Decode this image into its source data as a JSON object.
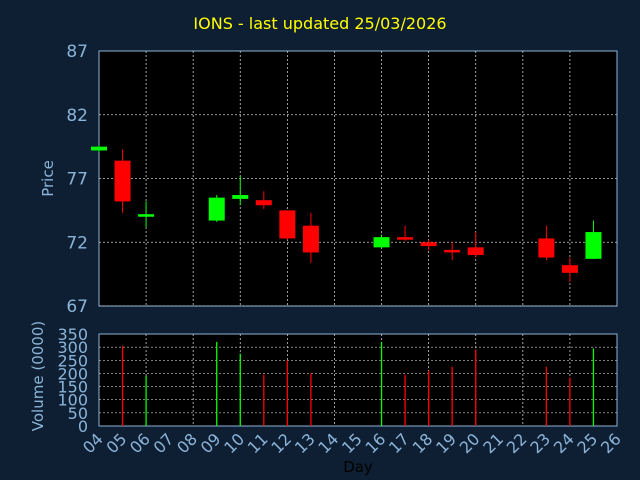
{
  "chart_data": [
    {
      "type": "candlestick",
      "title": "IONS - last updated 25/03/2026",
      "ylabel": "Price",
      "ylim": [
        67,
        87
      ],
      "yticks": [
        67,
        72,
        77,
        82,
        87
      ],
      "grid": true,
      "colors": {
        "up": "#00ff00",
        "down": "#ff0000",
        "background": "#0f1f33",
        "panel": "#000000",
        "axis": "#8ab4d8",
        "title": "#ffff00"
      },
      "days": [
        "04",
        "05",
        "06",
        "07",
        "08",
        "09",
        "10",
        "11",
        "12",
        "13",
        "14",
        "15",
        "16",
        "17",
        "18",
        "19",
        "20",
        "21",
        "22",
        "23",
        "24",
        "25",
        "26"
      ],
      "candles": [
        {
          "day": "04",
          "open": 79.2,
          "close": 79.5,
          "high": 79.6,
          "low": 79.1
        },
        {
          "day": "05",
          "open": 78.4,
          "close": 75.2,
          "high": 79.3,
          "low": 74.3
        },
        {
          "day": "06",
          "open": 74.0,
          "close": 74.2,
          "high": 75.2,
          "low": 73.2
        },
        {
          "day": "09",
          "open": 73.7,
          "close": 75.5,
          "high": 75.7,
          "low": 73.6
        },
        {
          "day": "10",
          "open": 75.4,
          "close": 75.7,
          "high": 77.2,
          "low": 74.9
        },
        {
          "day": "11",
          "open": 75.3,
          "close": 74.9,
          "high": 76.0,
          "low": 74.6
        },
        {
          "day": "12",
          "open": 74.5,
          "close": 72.3,
          "high": 74.5,
          "low": 72.2
        },
        {
          "day": "13",
          "open": 73.3,
          "close": 71.2,
          "high": 74.3,
          "low": 70.4
        },
        {
          "day": "16",
          "open": 71.6,
          "close": 72.4,
          "high": 72.6,
          "low": 71.5
        },
        {
          "day": "17",
          "open": 72.4,
          "close": 72.2,
          "high": 73.3,
          "low": 72.1
        },
        {
          "day": "18",
          "open": 72.0,
          "close": 71.7,
          "high": 72.2,
          "low": 71.4
        },
        {
          "day": "19",
          "open": 71.4,
          "close": 71.2,
          "high": 72.0,
          "low": 70.6
        },
        {
          "day": "20",
          "open": 71.6,
          "close": 71.0,
          "high": 72.8,
          "low": 70.8
        },
        {
          "day": "23",
          "open": 72.3,
          "close": 70.8,
          "high": 73.3,
          "low": 70.6
        },
        {
          "day": "24",
          "open": 70.2,
          "close": 69.6,
          "high": 70.8,
          "low": 68.9
        },
        {
          "day": "25",
          "open": 70.7,
          "close": 72.8,
          "high": 73.7,
          "low": 70.7
        }
      ]
    },
    {
      "type": "bar",
      "ylabel": "Volume (0000)",
      "xlabel": "Day",
      "ylim": [
        0,
        350
      ],
      "yticks": [
        0,
        50,
        100,
        150,
        200,
        250,
        300,
        350
      ],
      "grid": true,
      "volumes": [
        {
          "day": "05",
          "value": 305,
          "dir": "down"
        },
        {
          "day": "06",
          "value": 190,
          "dir": "up"
        },
        {
          "day": "09",
          "value": 320,
          "dir": "up"
        },
        {
          "day": "10",
          "value": 275,
          "dir": "up"
        },
        {
          "day": "11",
          "value": 195,
          "dir": "down"
        },
        {
          "day": "12",
          "value": 250,
          "dir": "down"
        },
        {
          "day": "13",
          "value": 200,
          "dir": "down"
        },
        {
          "day": "16",
          "value": 320,
          "dir": "up"
        },
        {
          "day": "17",
          "value": 195,
          "dir": "down"
        },
        {
          "day": "18",
          "value": 210,
          "dir": "down"
        },
        {
          "day": "19",
          "value": 225,
          "dir": "down"
        },
        {
          "day": "20",
          "value": 290,
          "dir": "down"
        },
        {
          "day": "23",
          "value": 225,
          "dir": "down"
        },
        {
          "day": "24",
          "value": 185,
          "dir": "down"
        },
        {
          "day": "25",
          "value": 295,
          "dir": "up"
        }
      ]
    }
  ]
}
